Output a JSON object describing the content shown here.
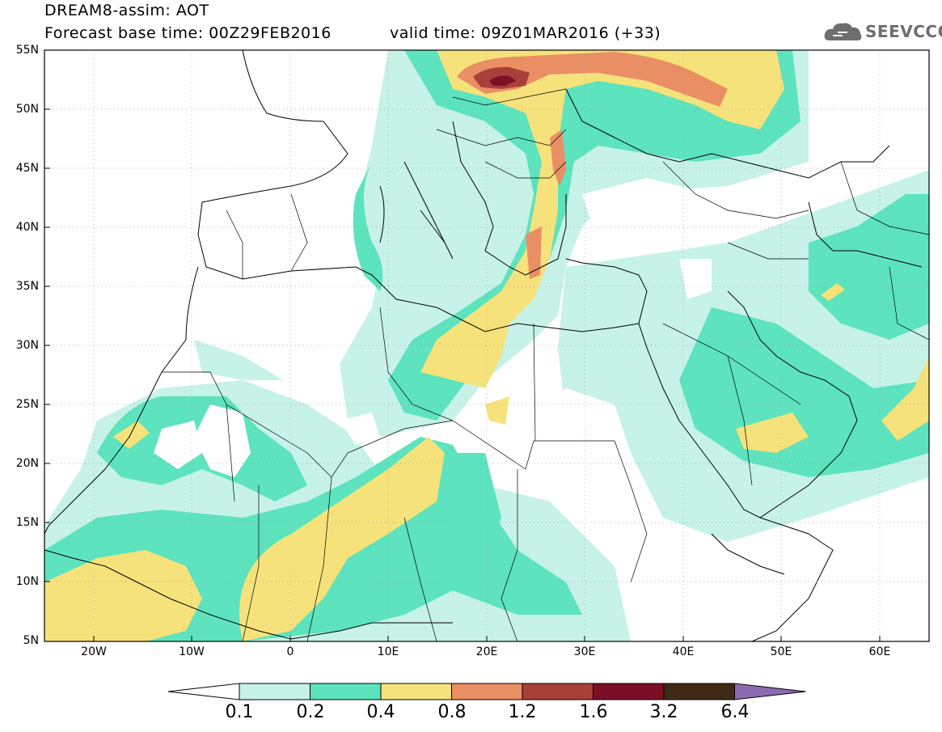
{
  "header": {
    "line1": "DREAM8-assim: AOT",
    "base_time": "Forecast base time: 00Z29FEB2016",
    "valid_time": "valid time: 09Z01MAR2016 (+33)",
    "logo_text": "SEEVCCC"
  },
  "map": {
    "lat_labels": [
      "55N",
      "50N",
      "45N",
      "40N",
      "35N",
      "30N",
      "25N",
      "20N",
      "15N",
      "10N",
      "5N"
    ],
    "lon_labels": [
      "20W",
      "10W",
      "0",
      "10E",
      "20E",
      "30E",
      "40E",
      "50E",
      "60E"
    ],
    "lat_range": [
      5,
      55
    ],
    "lon_range": [
      -25,
      65
    ],
    "grid": "dotted",
    "field": "AOT"
  },
  "colorbar": {
    "labels": [
      "0.1",
      "0.2",
      "0.4",
      "0.8",
      "1.2",
      "1.6",
      "3.2",
      "6.4"
    ],
    "colors": [
      "#ffffff",
      "#c6f2e8",
      "#5de3bd",
      "#f6e27b",
      "#ea8e64",
      "#a8403a",
      "#7c0f25",
      "#3e2a14",
      "#8a6ab0"
    ]
  }
}
